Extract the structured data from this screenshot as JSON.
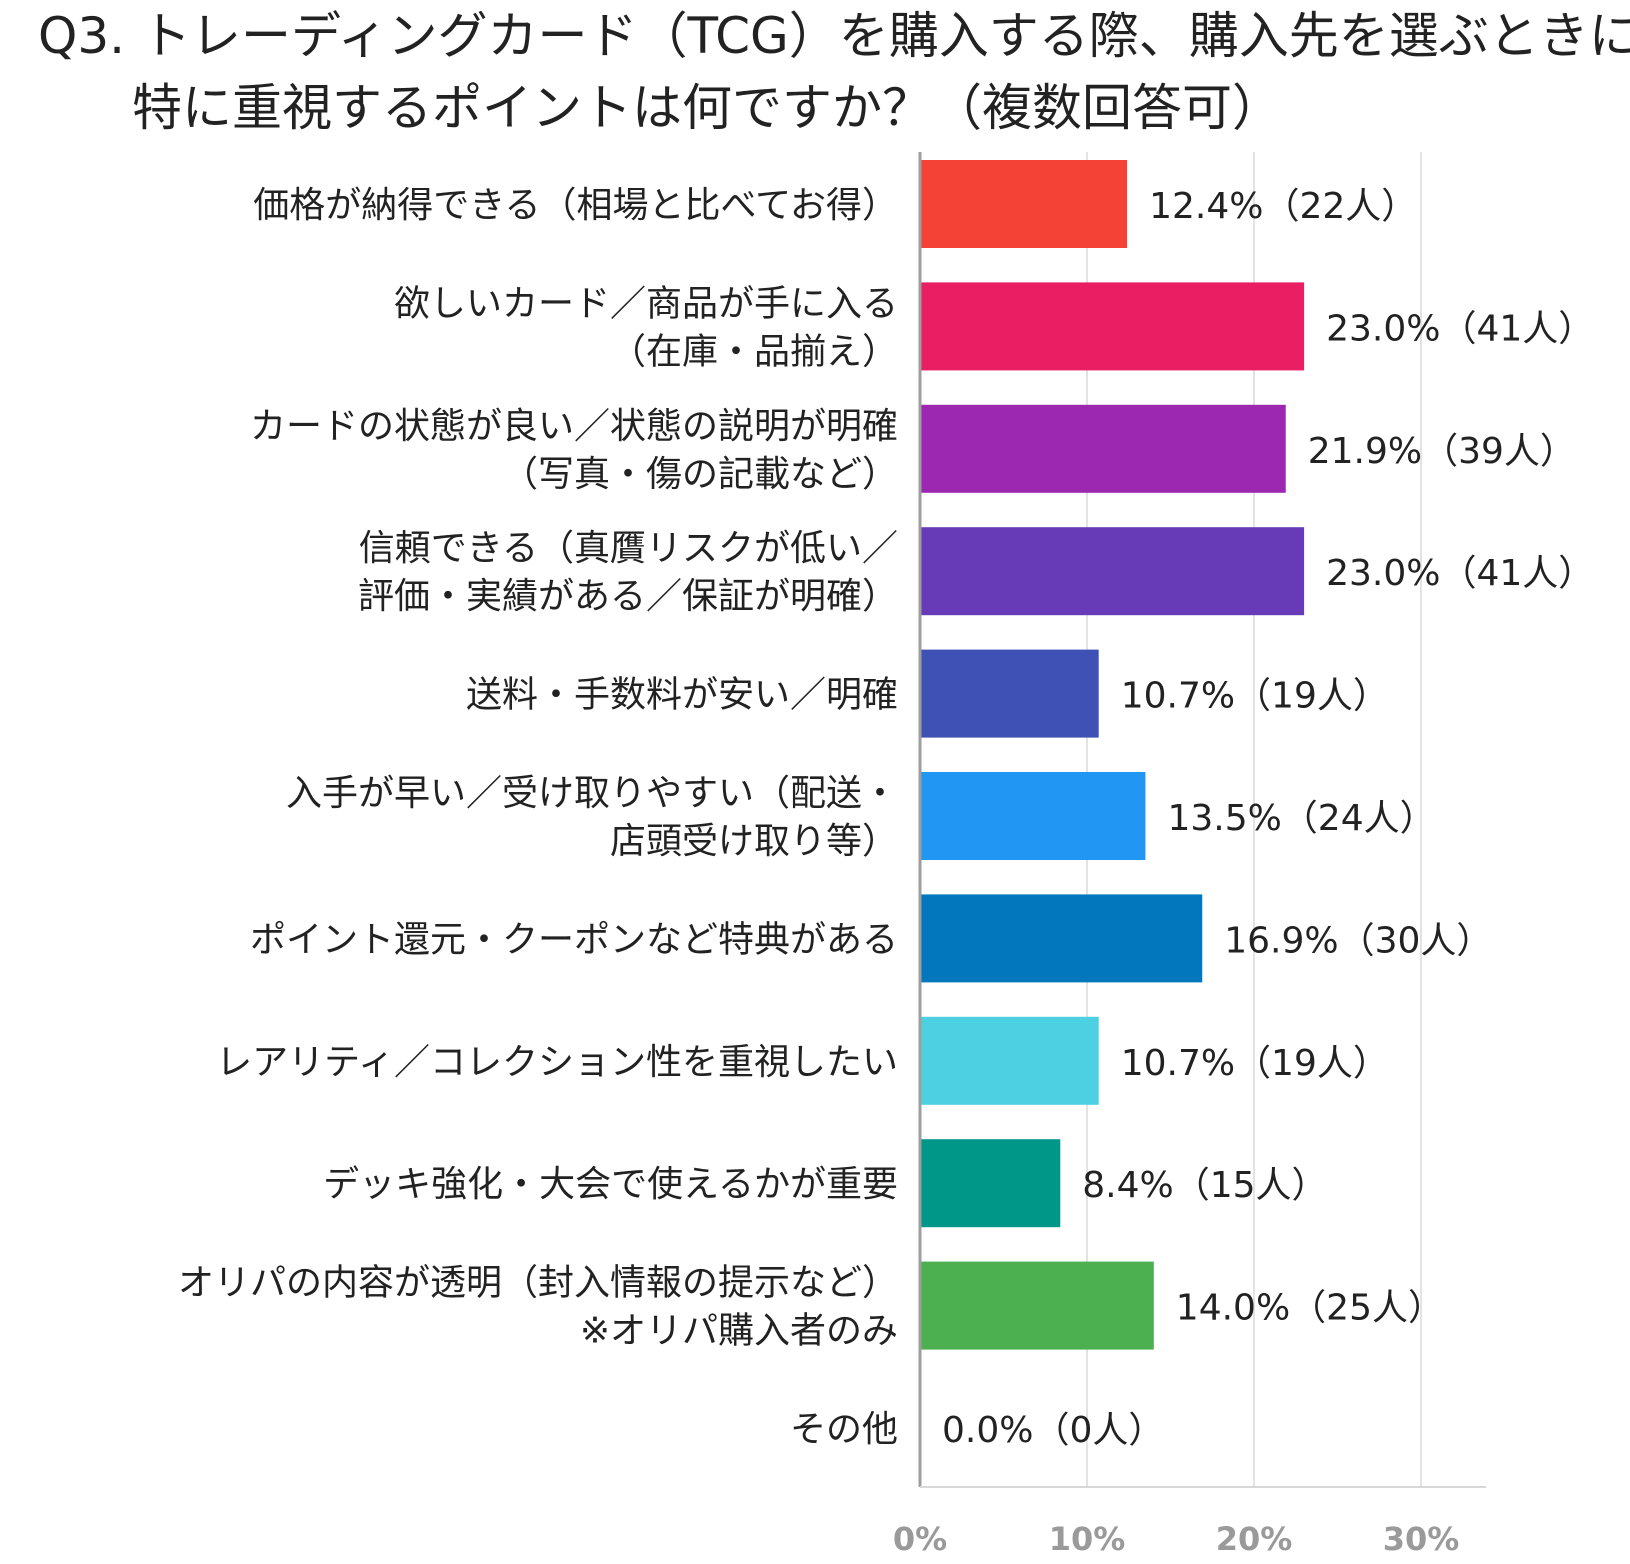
{
  "chart_data": {
    "type": "bar",
    "orientation": "horizontal",
    "title_lines": [
      "Q3. トレーディングカード（TCG）を購入する際、購入先を選ぶときに",
      "特に重視するポイントは何ですか？（複数回答可）"
    ],
    "categories": [
      [
        "価格が納得できる（相場と比べてお得）"
      ],
      [
        "欲しいカード／商品が手に入る",
        "（在庫・品揃え）"
      ],
      [
        "カードの状態が良い／状態の説明が明確",
        "（写真・傷の記載など）"
      ],
      [
        "信頼できる（真贋リスクが低い／",
        "評価・実績がある／保証が明確）"
      ],
      [
        "送料・手数料が安い／明確"
      ],
      [
        "入手が早い／受け取りやすい（配送・",
        "店頭受け取り等）"
      ],
      [
        "ポイント還元・クーポンなど特典がある"
      ],
      [
        "レアリティ／コレクション性を重視したい"
      ],
      [
        "デッキ強化・大会で使えるかが重要"
      ],
      [
        "オリパの内容が透明（封入情報の提示など）",
        "※オリパ購入者のみ"
      ],
      [
        "その他"
      ]
    ],
    "values": [
      12.4,
      23.0,
      21.9,
      23.0,
      10.7,
      13.5,
      16.9,
      10.7,
      8.4,
      14.0,
      0.0
    ],
    "data_labels": [
      "12.4%（22人）",
      "23.0%（41人）",
      "21.9%（39人）",
      "23.0%（41人）",
      "10.7%（19人）",
      "13.5%（24人）",
      "16.9%（30人）",
      "10.7%（19人）",
      "8.4%（15人）",
      "14.0%（25人）",
      "0.0%（0人）"
    ],
    "colors": [
      "#f44336",
      "#e91e63",
      "#9c27b0",
      "#673ab7",
      "#3f51b5",
      "#2196f3",
      "#0277bd",
      "#4dd0e1",
      "#009688",
      "#4caf50",
      "#9e9e9e"
    ],
    "x_ticks": [
      0,
      10,
      20,
      30
    ],
    "x_tick_labels": [
      "0%",
      "10%",
      "20%",
      "30%"
    ],
    "xlim": [
      0,
      34
    ],
    "grid": true
  }
}
